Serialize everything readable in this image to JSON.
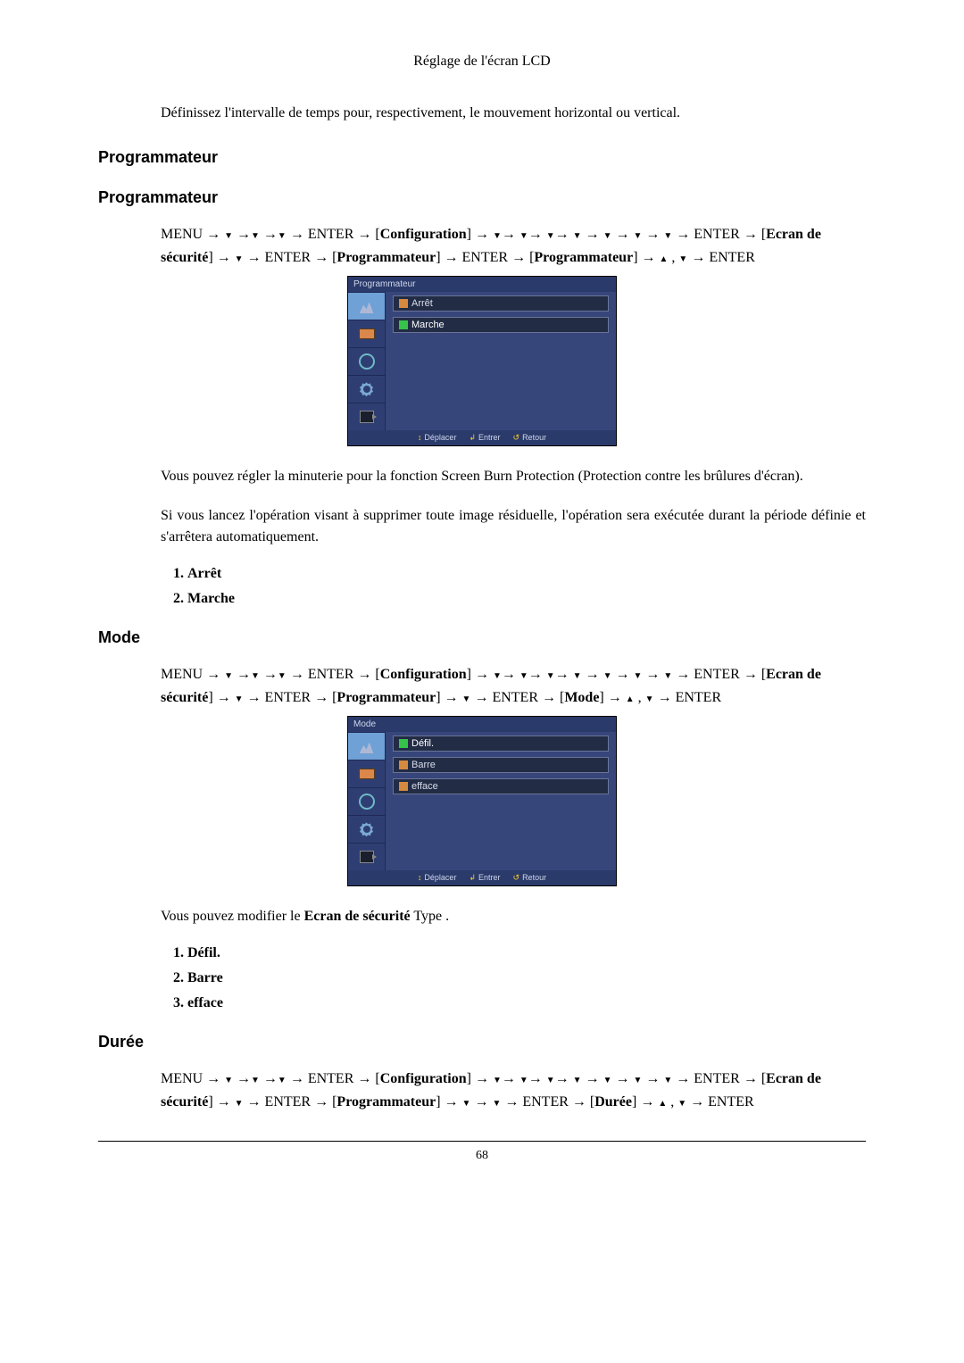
{
  "header": {
    "title": "Réglage de l'écran LCD"
  },
  "intro": "Définissez l'intervalle de temps pour, respectivement, le mouvement horizontal ou vertical.",
  "sec_prog": {
    "h1": "Programmateur",
    "h2": "Programmateur",
    "nav_prefix": "MENU → ",
    "nav_enter1": " → ENTER → [",
    "nav_conf": "Configuration",
    "nav_mid1": "] → ",
    "nav_enter2": " → ENTER → [",
    "nav_ecran": "Ecran de sécurité",
    "nav_mid2": "] → ",
    "nav_enter3": " → ENTER → [",
    "nav_programmateur": "Programmateur",
    "nav_mid3": "] → ENTER → [",
    "nav_mid4": "] → ",
    "nav_tail": " → ENTER",
    "osd": {
      "title": "Programmateur",
      "options": [
        {
          "label": "Arrêt",
          "selected": false
        },
        {
          "label": "Marche",
          "selected": true
        }
      ],
      "footer": {
        "move": "Déplacer",
        "enter": "Entrer",
        "back": "Retour"
      }
    },
    "desc1": "Vous pouvez régler la minuterie pour la fonction Screen Burn Protection (Protection contre les brûlures d'écran).",
    "desc2": "Si vous lancez l'opération visant à supprimer toute image résiduelle, l'opération sera exécutée durant la période définie et s'arrêtera automatiquement.",
    "opts": [
      "Arrêt",
      "Marche"
    ]
  },
  "sec_mode": {
    "h": "Mode",
    "nav_mode": "Mode",
    "nav_mid_mode": "] → ",
    "nav_enter4": " → ENTER → [",
    "nav_tail2": " → ENTER",
    "osd": {
      "title": "Mode",
      "options": [
        {
          "label": "Défil.",
          "selected": true
        },
        {
          "label": "Barre",
          "selected": false
        },
        {
          "label": "efface",
          "selected": false
        }
      ],
      "footer": {
        "move": "Déplacer",
        "enter": "Entrer",
        "back": "Retour"
      }
    },
    "desc_pre": "Vous pouvez modifier le ",
    "desc_bold": "Ecran de sécurité",
    "desc_post": " Type .",
    "opts": [
      "Défil.",
      "Barre",
      "efface"
    ]
  },
  "sec_duree": {
    "h": "Durée",
    "nav_duree": "Durée",
    "nav_tail": " → ENTER"
  },
  "glyphs": {
    "down": "▼",
    "up": "▲",
    "rarr": "→",
    "comma": " , "
  },
  "page": "68",
  "colors": {
    "osd_bg": "#2a3a6a",
    "osd_body": "#36457a",
    "option_bg": "#222c45",
    "check_off": "#d58a3f",
    "check_on": "#37c24a"
  }
}
